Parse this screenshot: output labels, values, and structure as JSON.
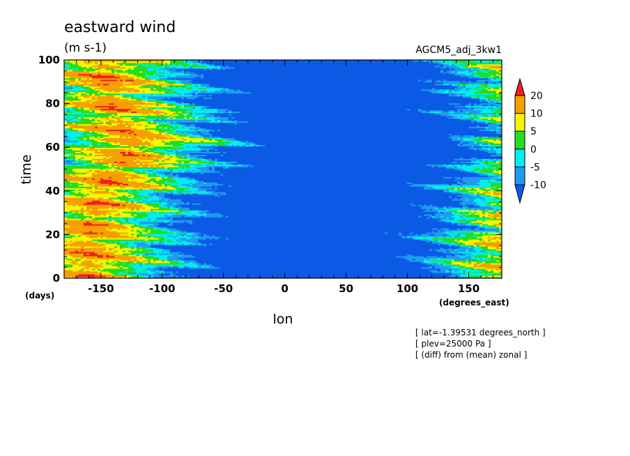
{
  "colors": {
    "red": "#ee2020",
    "orange": "#f5a000",
    "yellow": "#f5f500",
    "green": "#22dd22",
    "cyan": "#00eeee",
    "lightblue": "#1e9bf0",
    "blue": "#0a5ae6",
    "frame": "#000000"
  },
  "chart_data": {
    "type": "heatmap",
    "title": "eastward wind",
    "units": "(m s-1)",
    "run_label": "AGCM5_adj_3kw1",
    "xlabel": "lon",
    "ylabel": "time",
    "x_unit": "(degrees_east)",
    "y_unit": "(days)",
    "xlim": [
      -180,
      177
    ],
    "ylim": [
      0,
      100
    ],
    "xticks": [
      -150,
      -100,
      -50,
      0,
      50,
      100,
      150
    ],
    "yticks": [
      0,
      20,
      40,
      60,
      80,
      100
    ],
    "xtick_labels": [
      "-150",
      "-100",
      "-50",
      "0",
      "50",
      "100",
      "150"
    ],
    "ytick_labels": [
      "0",
      "20",
      "40",
      "60",
      "80",
      "100"
    ],
    "colorbar": {
      "levels": [
        -10,
        -5,
        0,
        5,
        10,
        20
      ],
      "labels": [
        "-10",
        "-5",
        "0",
        "5",
        "10",
        "20"
      ],
      "extend": "both",
      "colors": [
        "#0a5ae6",
        "#1e9bf0",
        "#00eeee",
        "#22dd22",
        "#f5f500",
        "#f5a000",
        "#ee2020"
      ]
    },
    "easterly_band_center_lon": [
      {
        "day": 0,
        "lon": 20
      },
      {
        "day": 20,
        "lon": 20
      },
      {
        "day": 40,
        "lon": 30
      },
      {
        "day": 60,
        "lon": 55
      },
      {
        "day": 80,
        "lon": 40
      },
      {
        "day": 100,
        "lon": 30
      }
    ],
    "annotations": [
      "[ lat=-1.39531 degrees_north ]",
      "[ plev=25000 Pa ]",
      "[ (diff) from (mean) zonal ]"
    ]
  }
}
